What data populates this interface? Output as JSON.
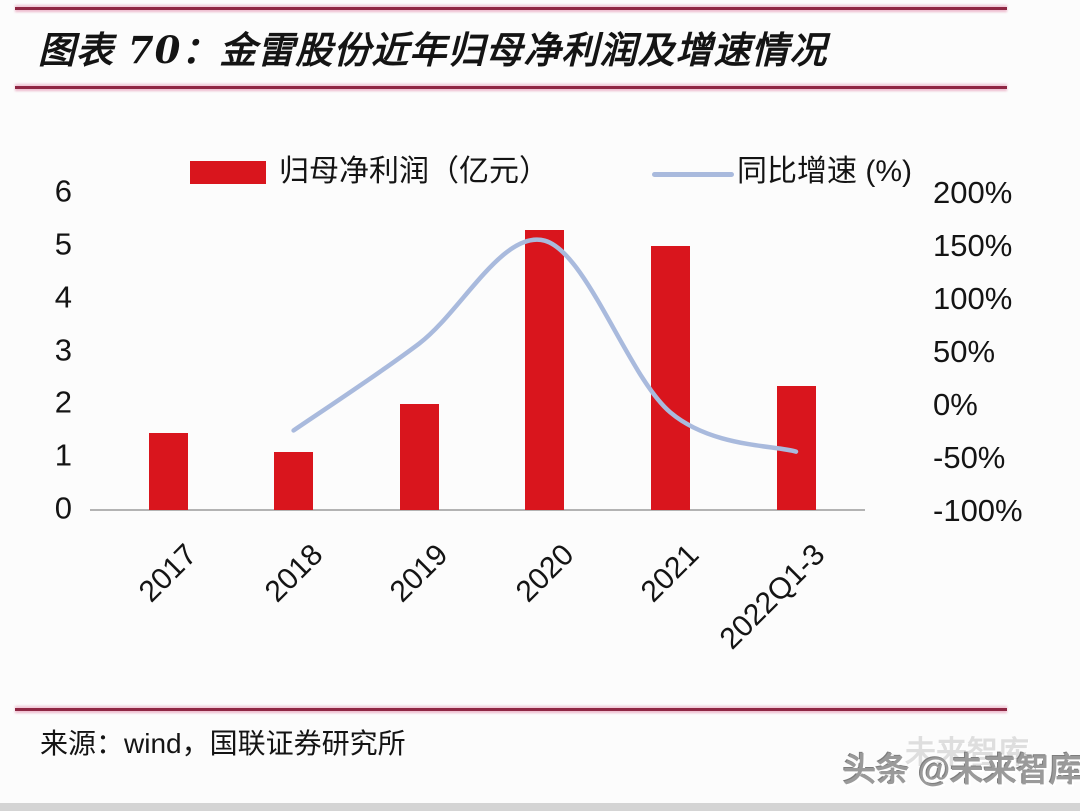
{
  "figure": {
    "title": "图表 70：金雷股份近年归母净利润及增速情况",
    "source": "来源：wind，国联证券研究所",
    "watermark": "头条 @未来智库",
    "watermark_ghost": "未来智库"
  },
  "chart_data": {
    "type": "bar",
    "subtype": "combo bar+line, dual axis",
    "categories": [
      "2017",
      "2018",
      "2019",
      "2020",
      "2021",
      "2022Q1-3"
    ],
    "series": [
      {
        "name": "归母净利润（亿元）",
        "type": "bar",
        "axis": "left",
        "color": "#d9151d",
        "values": [
          1.45,
          1.1,
          2.0,
          5.3,
          5.0,
          2.35
        ]
      },
      {
        "name": "同比增速 (%)",
        "type": "line",
        "axis": "right",
        "color": "#a9badd",
        "values": [
          null,
          -24,
          58,
          155,
          -7,
          -44
        ]
      }
    ],
    "left_axis": {
      "min": 0,
      "max": 6,
      "ticks": [
        6,
        5,
        4,
        3,
        2,
        1,
        0
      ]
    },
    "right_axis": {
      "min": -100,
      "max": 200,
      "ticks": [
        "200%",
        "150%",
        "100%",
        "50%",
        "0%",
        "-50%",
        "-100%"
      ]
    },
    "legend_position": "top",
    "grid": false,
    "title": "",
    "xlabel": "",
    "ylabel_left": "归母净利润（亿元）",
    "ylabel_right": "同比增速 (%)"
  },
  "colors": {
    "bar_red": "#d9151d",
    "line_blue": "#a9badd",
    "rule_maroon": "#8f2744",
    "axis_gray": "#b3b3b3",
    "text_ink": "#141414",
    "watermark_gray": "#9a9a9a"
  }
}
